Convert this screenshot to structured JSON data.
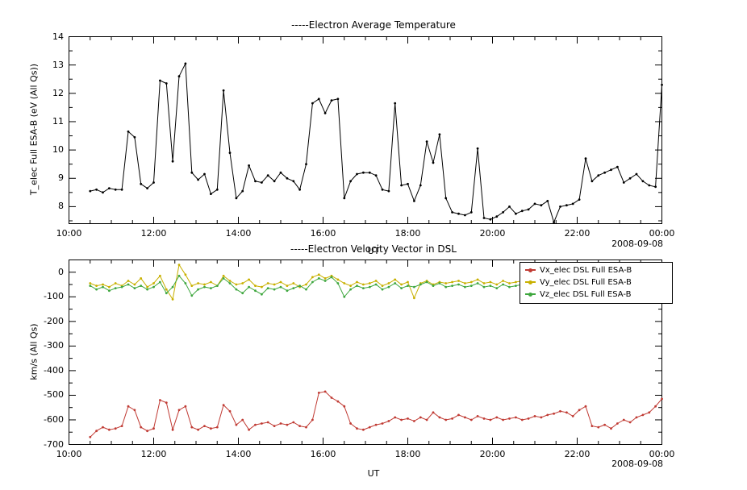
{
  "page": {
    "date_label": "2008-09-08",
    "ut_label": "UT"
  },
  "chart_data": [
    {
      "type": "line",
      "title": "-----Electron Average Temperature",
      "ylabel": "T_elec Full ESA-B (eV (All Qs))",
      "xlabel": "UT",
      "date_annotation": "2008-09-08",
      "xlim": [
        10,
        24
      ],
      "ylim": [
        7.4,
        14
      ],
      "x_ticks": [
        "10:00",
        "12:00",
        "14:00",
        "16:00",
        "18:00",
        "20:00",
        "22:00",
        "00:00"
      ],
      "x_tick_values": [
        10,
        12,
        14,
        16,
        18,
        20,
        22,
        24
      ],
      "y_ticks": [
        8,
        9,
        10,
        11,
        12,
        13,
        14
      ],
      "x_minor_step": 0.5,
      "y_minor_step": 0.5,
      "grid": false,
      "x": [
        10.5,
        10.65,
        10.8,
        10.95,
        11.1,
        11.25,
        11.4,
        11.55,
        11.7,
        11.85,
        12,
        12.15,
        12.3,
        12.45,
        12.6,
        12.75,
        12.9,
        13.05,
        13.2,
        13.35,
        13.5,
        13.65,
        13.8,
        13.95,
        14.1,
        14.25,
        14.4,
        14.55,
        14.7,
        14.85,
        15,
        15.15,
        15.3,
        15.45,
        15.6,
        15.75,
        15.9,
        16.05,
        16.2,
        16.35,
        16.5,
        16.65,
        16.8,
        16.95,
        17.1,
        17.25,
        17.4,
        17.55,
        17.7,
        17.85,
        18,
        18.15,
        18.3,
        18.45,
        18.6,
        18.75,
        18.9,
        19.05,
        19.2,
        19.35,
        19.5,
        19.65,
        19.8,
        19.95,
        20.1,
        20.25,
        20.4,
        20.55,
        20.7,
        20.85,
        21,
        21.15,
        21.3,
        21.45,
        21.6,
        21.75,
        21.9,
        22.05,
        22.2,
        22.35,
        22.5,
        22.65,
        22.8,
        22.95,
        23.1,
        23.25,
        23.4,
        23.55,
        23.7,
        23.85,
        24
      ],
      "series": [
        {
          "name": "T_elec Full ESA-B",
          "color": "#000000",
          "values": [
            8.55,
            8.6,
            8.5,
            8.65,
            8.6,
            8.6,
            10.65,
            10.45,
            8.8,
            8.65,
            8.85,
            12.45,
            12.35,
            9.6,
            12.6,
            13.05,
            9.2,
            8.95,
            9.15,
            8.45,
            8.6,
            12.1,
            9.9,
            8.3,
            8.55,
            9.45,
            8.9,
            8.85,
            9.1,
            8.9,
            9.2,
            9.0,
            8.9,
            8.6,
            9.5,
            11.65,
            11.8,
            11.3,
            11.75,
            11.8,
            8.3,
            8.9,
            9.15,
            9.2,
            9.2,
            9.1,
            8.6,
            8.55,
            11.65,
            8.75,
            8.8,
            8.2,
            8.75,
            10.3,
            9.55,
            10.55,
            8.3,
            7.8,
            7.75,
            7.7,
            7.8,
            10.05,
            7.6,
            7.55,
            7.65,
            7.8,
            8.0,
            7.75,
            7.85,
            7.9,
            8.1,
            8.05,
            8.2,
            7.45,
            8.0,
            8.05,
            8.1,
            8.25,
            9.7,
            8.9,
            9.1,
            9.2,
            9.3,
            9.4,
            8.85,
            9.0,
            9.15,
            8.9,
            8.75,
            8.7,
            12.3
          ]
        }
      ]
    },
    {
      "type": "line",
      "title": "-----Electron Velocity Vector in DSL",
      "ylabel": "km/s (All Qs)",
      "xlabel": "UT",
      "date_annotation": "2008-09-08",
      "xlim": [
        10,
        24
      ],
      "ylim": [
        -700,
        50
      ],
      "x_ticks": [
        "10:00",
        "12:00",
        "14:00",
        "16:00",
        "18:00",
        "20:00",
        "22:00",
        "00:00"
      ],
      "x_tick_values": [
        10,
        12,
        14,
        16,
        18,
        20,
        22,
        24
      ],
      "y_ticks": [
        0,
        -100,
        -200,
        -300,
        -400,
        -500,
        -600,
        -700
      ],
      "x_minor_step": 0.5,
      "y_minor_step": 50,
      "grid": false,
      "legend_position": "top-right",
      "x": [
        10.5,
        10.65,
        10.8,
        10.95,
        11.1,
        11.25,
        11.4,
        11.55,
        11.7,
        11.85,
        12,
        12.15,
        12.3,
        12.45,
        12.6,
        12.75,
        12.9,
        13.05,
        13.2,
        13.35,
        13.5,
        13.65,
        13.8,
        13.95,
        14.1,
        14.25,
        14.4,
        14.55,
        14.7,
        14.85,
        15,
        15.15,
        15.3,
        15.45,
        15.6,
        15.75,
        15.9,
        16.05,
        16.2,
        16.35,
        16.5,
        16.65,
        16.8,
        16.95,
        17.1,
        17.25,
        17.4,
        17.55,
        17.7,
        17.85,
        18,
        18.15,
        18.3,
        18.45,
        18.6,
        18.75,
        18.9,
        19.05,
        19.2,
        19.35,
        19.5,
        19.65,
        19.8,
        19.95,
        20.1,
        20.25,
        20.4,
        20.55,
        20.7,
        20.85,
        21,
        21.15,
        21.3,
        21.45,
        21.6,
        21.75,
        21.9,
        22.05,
        22.2,
        22.35,
        22.5,
        22.65,
        22.8,
        22.95,
        23.1,
        23.25,
        23.4,
        23.55,
        23.7,
        23.85,
        24
      ],
      "series": [
        {
          "name": "Vx_elec DSL Full ESA-B",
          "color": "#c03a33",
          "values": [
            -670,
            -645,
            -630,
            -640,
            -635,
            -625,
            -545,
            -560,
            -630,
            -645,
            -635,
            -520,
            -530,
            -640,
            -560,
            -545,
            -630,
            -640,
            -625,
            -635,
            -630,
            -540,
            -565,
            -620,
            -600,
            -640,
            -620,
            -615,
            -610,
            -625,
            -615,
            -620,
            -610,
            -625,
            -630,
            -600,
            -490,
            -485,
            -510,
            -525,
            -545,
            -615,
            -635,
            -640,
            -630,
            -620,
            -615,
            -605,
            -590,
            -600,
            -595,
            -605,
            -590,
            -600,
            -570,
            -590,
            -600,
            -595,
            -580,
            -590,
            -600,
            -585,
            -595,
            -600,
            -590,
            -600,
            -595,
            -590,
            -600,
            -595,
            -585,
            -590,
            -580,
            -575,
            -565,
            -570,
            -585,
            -560,
            -545,
            -625,
            -630,
            -620,
            -635,
            -615,
            -600,
            -610,
            -590,
            -580,
            -570,
            -545,
            -515
          ]
        },
        {
          "name": "Vy_elec DSL Full ESA-B",
          "color": "#c8b000",
          "values": [
            -45,
            -55,
            -50,
            -60,
            -45,
            -55,
            -35,
            -50,
            -25,
            -60,
            -45,
            -15,
            -70,
            -110,
            30,
            -10,
            -55,
            -45,
            -50,
            -40,
            -55,
            -15,
            -35,
            -50,
            -45,
            -30,
            -55,
            -60,
            -45,
            -50,
            -40,
            -55,
            -45,
            -60,
            -50,
            -20,
            -10,
            -25,
            -15,
            -30,
            -45,
            -55,
            -40,
            -50,
            -45,
            -35,
            -55,
            -45,
            -30,
            -50,
            -40,
            -105,
            -45,
            -35,
            -50,
            -40,
            -45,
            -40,
            -35,
            -45,
            -40,
            -30,
            -45,
            -40,
            -50,
            -35,
            -45,
            -40,
            -35,
            -45,
            -40,
            -35,
            -45,
            -40,
            -30,
            -45,
            -40,
            -50,
            -35,
            -45,
            -40,
            -30,
            -45,
            -35,
            -40,
            -45,
            -30,
            -40,
            -35,
            -30,
            -30
          ]
        },
        {
          "name": "Vz_elec DSL Full ESA-B",
          "color": "#3fa73f",
          "values": [
            -55,
            -70,
            -60,
            -75,
            -65,
            -60,
            -50,
            -65,
            -55,
            -70,
            -60,
            -40,
            -85,
            -60,
            -15,
            -45,
            -95,
            -70,
            -60,
            -65,
            -55,
            -25,
            -45,
            -70,
            -85,
            -60,
            -75,
            -90,
            -65,
            -70,
            -60,
            -75,
            -65,
            -55,
            -70,
            -40,
            -25,
            -35,
            -20,
            -45,
            -100,
            -70,
            -55,
            -65,
            -60,
            -50,
            -70,
            -60,
            -45,
            -65,
            -55,
            -60,
            -50,
            -40,
            -55,
            -45,
            -60,
            -55,
            -50,
            -60,
            -55,
            -45,
            -60,
            -55,
            -65,
            -50,
            -60,
            -55,
            -50,
            -60,
            -55,
            -50,
            -60,
            -55,
            -45,
            -60,
            -55,
            -65,
            -50,
            -60,
            -55,
            -45,
            -60,
            -50,
            -55,
            -60,
            -45,
            -55,
            -50,
            -40,
            -35
          ]
        }
      ]
    }
  ]
}
